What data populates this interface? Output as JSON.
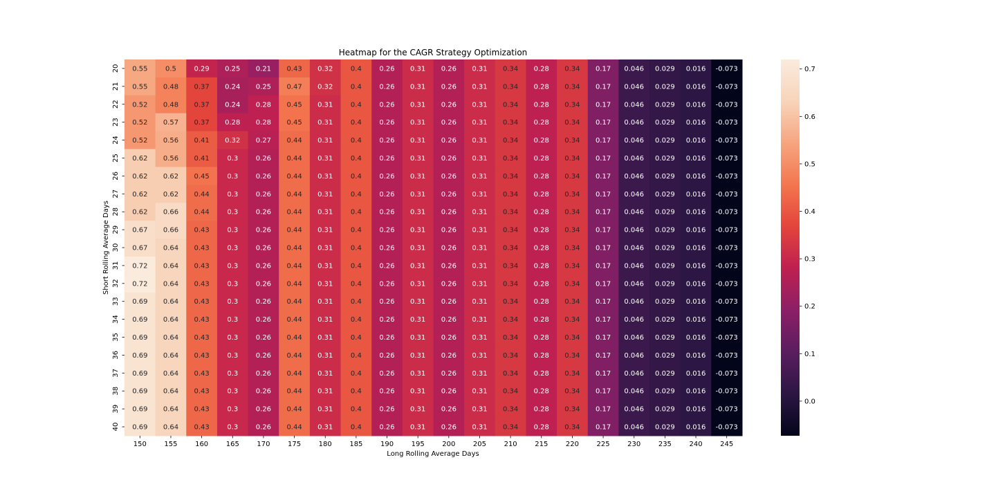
{
  "chart_data": {
    "type": "heatmap",
    "title": "Heatmap for the CAGR Strategy Optimization",
    "xlabel": "Long Rolling Average Days",
    "ylabel": "Short Rolling Average Days",
    "x_categories": [
      "150",
      "155",
      "160",
      "165",
      "170",
      "175",
      "180",
      "185",
      "190",
      "195",
      "200",
      "205",
      "210",
      "215",
      "220",
      "225",
      "230",
      "235",
      "240",
      "245"
    ],
    "y_categories": [
      "20",
      "21",
      "22",
      "23",
      "24",
      "25",
      "26",
      "27",
      "28",
      "29",
      "30",
      "31",
      "32",
      "33",
      "34",
      "35",
      "36",
      "37",
      "38",
      "39",
      "40"
    ],
    "values": [
      [
        0.55,
        0.5,
        0.29,
        0.25,
        0.21,
        0.43,
        0.32,
        0.4,
        0.26,
        0.31,
        0.26,
        0.31,
        0.34,
        0.28,
        0.34,
        0.17,
        0.046,
        0.029,
        0.016,
        -0.073
      ],
      [
        0.55,
        0.48,
        0.37,
        0.24,
        0.25,
        0.47,
        0.32,
        0.4,
        0.26,
        0.31,
        0.26,
        0.31,
        0.34,
        0.28,
        0.34,
        0.17,
        0.046,
        0.029,
        0.016,
        -0.073
      ],
      [
        0.52,
        0.48,
        0.37,
        0.24,
        0.28,
        0.45,
        0.31,
        0.4,
        0.26,
        0.31,
        0.26,
        0.31,
        0.34,
        0.28,
        0.34,
        0.17,
        0.046,
        0.029,
        0.016,
        -0.073
      ],
      [
        0.52,
        0.57,
        0.37,
        0.28,
        0.28,
        0.45,
        0.31,
        0.4,
        0.26,
        0.31,
        0.26,
        0.31,
        0.34,
        0.28,
        0.34,
        0.17,
        0.046,
        0.029,
        0.016,
        -0.073
      ],
      [
        0.52,
        0.56,
        0.41,
        0.32,
        0.27,
        0.44,
        0.31,
        0.4,
        0.26,
        0.31,
        0.26,
        0.31,
        0.34,
        0.28,
        0.34,
        0.17,
        0.046,
        0.029,
        0.016,
        -0.073
      ],
      [
        0.62,
        0.56,
        0.41,
        0.3,
        0.26,
        0.44,
        0.31,
        0.4,
        0.26,
        0.31,
        0.26,
        0.31,
        0.34,
        0.28,
        0.34,
        0.17,
        0.046,
        0.029,
        0.016,
        -0.073
      ],
      [
        0.62,
        0.62,
        0.45,
        0.3,
        0.26,
        0.44,
        0.31,
        0.4,
        0.26,
        0.31,
        0.26,
        0.31,
        0.34,
        0.28,
        0.34,
        0.17,
        0.046,
        0.029,
        0.016,
        -0.073
      ],
      [
        0.62,
        0.62,
        0.44,
        0.3,
        0.26,
        0.44,
        0.31,
        0.4,
        0.26,
        0.31,
        0.26,
        0.31,
        0.34,
        0.28,
        0.34,
        0.17,
        0.046,
        0.029,
        0.016,
        -0.073
      ],
      [
        0.62,
        0.66,
        0.44,
        0.3,
        0.26,
        0.44,
        0.31,
        0.4,
        0.26,
        0.31,
        0.26,
        0.31,
        0.34,
        0.28,
        0.34,
        0.17,
        0.046,
        0.029,
        0.016,
        -0.073
      ],
      [
        0.67,
        0.66,
        0.43,
        0.3,
        0.26,
        0.44,
        0.31,
        0.4,
        0.26,
        0.31,
        0.26,
        0.31,
        0.34,
        0.28,
        0.34,
        0.17,
        0.046,
        0.029,
        0.016,
        -0.073
      ],
      [
        0.67,
        0.64,
        0.43,
        0.3,
        0.26,
        0.44,
        0.31,
        0.4,
        0.26,
        0.31,
        0.26,
        0.31,
        0.34,
        0.28,
        0.34,
        0.17,
        0.046,
        0.029,
        0.016,
        -0.073
      ],
      [
        0.72,
        0.64,
        0.43,
        0.3,
        0.26,
        0.44,
        0.31,
        0.4,
        0.26,
        0.31,
        0.26,
        0.31,
        0.34,
        0.28,
        0.34,
        0.17,
        0.046,
        0.029,
        0.016,
        -0.073
      ],
      [
        0.72,
        0.64,
        0.43,
        0.3,
        0.26,
        0.44,
        0.31,
        0.4,
        0.26,
        0.31,
        0.26,
        0.31,
        0.34,
        0.28,
        0.34,
        0.17,
        0.046,
        0.029,
        0.016,
        -0.073
      ],
      [
        0.69,
        0.64,
        0.43,
        0.3,
        0.26,
        0.44,
        0.31,
        0.4,
        0.26,
        0.31,
        0.26,
        0.31,
        0.34,
        0.28,
        0.34,
        0.17,
        0.046,
        0.029,
        0.016,
        -0.073
      ],
      [
        0.69,
        0.64,
        0.43,
        0.3,
        0.26,
        0.44,
        0.31,
        0.4,
        0.26,
        0.31,
        0.26,
        0.31,
        0.34,
        0.28,
        0.34,
        0.17,
        0.046,
        0.029,
        0.016,
        -0.073
      ],
      [
        0.69,
        0.64,
        0.43,
        0.3,
        0.26,
        0.44,
        0.31,
        0.4,
        0.26,
        0.31,
        0.26,
        0.31,
        0.34,
        0.28,
        0.34,
        0.17,
        0.046,
        0.029,
        0.016,
        -0.073
      ],
      [
        0.69,
        0.64,
        0.43,
        0.3,
        0.26,
        0.44,
        0.31,
        0.4,
        0.26,
        0.31,
        0.26,
        0.31,
        0.34,
        0.28,
        0.34,
        0.17,
        0.046,
        0.029,
        0.016,
        -0.073
      ],
      [
        0.69,
        0.64,
        0.43,
        0.3,
        0.26,
        0.44,
        0.31,
        0.4,
        0.26,
        0.31,
        0.26,
        0.31,
        0.34,
        0.28,
        0.34,
        0.17,
        0.046,
        0.029,
        0.016,
        -0.073
      ],
      [
        0.69,
        0.64,
        0.43,
        0.3,
        0.26,
        0.44,
        0.31,
        0.4,
        0.26,
        0.31,
        0.26,
        0.31,
        0.34,
        0.28,
        0.34,
        0.17,
        0.046,
        0.029,
        0.016,
        -0.073
      ],
      [
        0.69,
        0.64,
        0.43,
        0.3,
        0.26,
        0.44,
        0.31,
        0.4,
        0.26,
        0.31,
        0.26,
        0.31,
        0.34,
        0.28,
        0.34,
        0.17,
        0.046,
        0.029,
        0.016,
        -0.073
      ],
      [
        0.69,
        0.64,
        0.43,
        0.3,
        0.26,
        0.44,
        0.31,
        0.4,
        0.26,
        0.31,
        0.26,
        0.31,
        0.34,
        0.28,
        0.34,
        0.17,
        0.046,
        0.029,
        0.016,
        -0.073
      ]
    ],
    "cell_labels": [
      [
        "0.55",
        "0.5",
        "0.29",
        "0.25",
        "0.21",
        "0.43",
        "0.32",
        "0.4",
        "0.26",
        "0.31",
        "0.26",
        "0.31",
        "0.34",
        "0.28",
        "0.34",
        "0.17",
        "0.046",
        "0.029",
        "0.016",
        "-0.073"
      ],
      [
        "0.55",
        "0.48",
        "0.37",
        "0.24",
        "0.25",
        "0.47",
        "0.32",
        "0.4",
        "0.26",
        "0.31",
        "0.26",
        "0.31",
        "0.34",
        "0.28",
        "0.34",
        "0.17",
        "0.046",
        "0.029",
        "0.016",
        "-0.073"
      ],
      [
        "0.52",
        "0.48",
        "0.37",
        "0.24",
        "0.28",
        "0.45",
        "0.31",
        "0.4",
        "0.26",
        "0.31",
        "0.26",
        "0.31",
        "0.34",
        "0.28",
        "0.34",
        "0.17",
        "0.046",
        "0.029",
        "0.016",
        "-0.073"
      ],
      [
        "0.52",
        "0.57",
        "0.37",
        "0.28",
        "0.28",
        "0.45",
        "0.31",
        "0.4",
        "0.26",
        "0.31",
        "0.26",
        "0.31",
        "0.34",
        "0.28",
        "0.34",
        "0.17",
        "0.046",
        "0.029",
        "0.016",
        "-0.073"
      ],
      [
        "0.52",
        "0.56",
        "0.41",
        "0.32",
        "0.27",
        "0.44",
        "0.31",
        "0.4",
        "0.26",
        "0.31",
        "0.26",
        "0.31",
        "0.34",
        "0.28",
        "0.34",
        "0.17",
        "0.046",
        "0.029",
        "0.016",
        "-0.073"
      ],
      [
        "0.62",
        "0.56",
        "0.41",
        "0.3",
        "0.26",
        "0.44",
        "0.31",
        "0.4",
        "0.26",
        "0.31",
        "0.26",
        "0.31",
        "0.34",
        "0.28",
        "0.34",
        "0.17",
        "0.046",
        "0.029",
        "0.016",
        "-0.073"
      ],
      [
        "0.62",
        "0.62",
        "0.45",
        "0.3",
        "0.26",
        "0.44",
        "0.31",
        "0.4",
        "0.26",
        "0.31",
        "0.26",
        "0.31",
        "0.34",
        "0.28",
        "0.34",
        "0.17",
        "0.046",
        "0.029",
        "0.016",
        "-0.073"
      ],
      [
        "0.62",
        "0.62",
        "0.44",
        "0.3",
        "0.26",
        "0.44",
        "0.31",
        "0.4",
        "0.26",
        "0.31",
        "0.26",
        "0.31",
        "0.34",
        "0.28",
        "0.34",
        "0.17",
        "0.046",
        "0.029",
        "0.016",
        "-0.073"
      ],
      [
        "0.62",
        "0.66",
        "0.44",
        "0.3",
        "0.26",
        "0.44",
        "0.31",
        "0.4",
        "0.26",
        "0.31",
        "0.26",
        "0.31",
        "0.34",
        "0.28",
        "0.34",
        "0.17",
        "0.046",
        "0.029",
        "0.016",
        "-0.073"
      ],
      [
        "0.67",
        "0.66",
        "0.43",
        "0.3",
        "0.26",
        "0.44",
        "0.31",
        "0.4",
        "0.26",
        "0.31",
        "0.26",
        "0.31",
        "0.34",
        "0.28",
        "0.34",
        "0.17",
        "0.046",
        "0.029",
        "0.016",
        "-0.073"
      ],
      [
        "0.67",
        "0.64",
        "0.43",
        "0.3",
        "0.26",
        "0.44",
        "0.31",
        "0.4",
        "0.26",
        "0.31",
        "0.26",
        "0.31",
        "0.34",
        "0.28",
        "0.34",
        "0.17",
        "0.046",
        "0.029",
        "0.016",
        "-0.073"
      ],
      [
        "0.72",
        "0.64",
        "0.43",
        "0.3",
        "0.26",
        "0.44",
        "0.31",
        "0.4",
        "0.26",
        "0.31",
        "0.26",
        "0.31",
        "0.34",
        "0.28",
        "0.34",
        "0.17",
        "0.046",
        "0.029",
        "0.016",
        "-0.073"
      ],
      [
        "0.72",
        "0.64",
        "0.43",
        "0.3",
        "0.26",
        "0.44",
        "0.31",
        "0.4",
        "0.26",
        "0.31",
        "0.26",
        "0.31",
        "0.34",
        "0.28",
        "0.34",
        "0.17",
        "0.046",
        "0.029",
        "0.016",
        "-0.073"
      ],
      [
        "0.69",
        "0.64",
        "0.43",
        "0.3",
        "0.26",
        "0.44",
        "0.31",
        "0.4",
        "0.26",
        "0.31",
        "0.26",
        "0.31",
        "0.34",
        "0.28",
        "0.34",
        "0.17",
        "0.046",
        "0.029",
        "0.016",
        "-0.073"
      ],
      [
        "0.69",
        "0.64",
        "0.43",
        "0.3",
        "0.26",
        "0.44",
        "0.31",
        "0.4",
        "0.26",
        "0.31",
        "0.26",
        "0.31",
        "0.34",
        "0.28",
        "0.34",
        "0.17",
        "0.046",
        "0.029",
        "0.016",
        "-0.073"
      ],
      [
        "0.69",
        "0.64",
        "0.43",
        "0.3",
        "0.26",
        "0.44",
        "0.31",
        "0.4",
        "0.26",
        "0.31",
        "0.26",
        "0.31",
        "0.34",
        "0.28",
        "0.34",
        "0.17",
        "0.046",
        "0.029",
        "0.016",
        "-0.073"
      ],
      [
        "0.69",
        "0.64",
        "0.43",
        "0.3",
        "0.26",
        "0.44",
        "0.31",
        "0.4",
        "0.26",
        "0.31",
        "0.26",
        "0.31",
        "0.34",
        "0.28",
        "0.34",
        "0.17",
        "0.046",
        "0.029",
        "0.016",
        "-0.073"
      ],
      [
        "0.69",
        "0.64",
        "0.43",
        "0.3",
        "0.26",
        "0.44",
        "0.31",
        "0.4",
        "0.26",
        "0.31",
        "0.26",
        "0.31",
        "0.34",
        "0.28",
        "0.34",
        "0.17",
        "0.046",
        "0.029",
        "0.016",
        "-0.073"
      ],
      [
        "0.69",
        "0.64",
        "0.43",
        "0.3",
        "0.26",
        "0.44",
        "0.31",
        "0.4",
        "0.26",
        "0.31",
        "0.26",
        "0.31",
        "0.34",
        "0.28",
        "0.34",
        "0.17",
        "0.046",
        "0.029",
        "0.016",
        "-0.073"
      ],
      [
        "0.69",
        "0.64",
        "0.43",
        "0.3",
        "0.26",
        "0.44",
        "0.31",
        "0.4",
        "0.26",
        "0.31",
        "0.26",
        "0.31",
        "0.34",
        "0.28",
        "0.34",
        "0.17",
        "0.046",
        "0.029",
        "0.016",
        "-0.073"
      ],
      [
        "0.69",
        "0.64",
        "0.43",
        "0.3",
        "0.26",
        "0.44",
        "0.31",
        "0.4",
        "0.26",
        "0.31",
        "0.26",
        "0.31",
        "0.34",
        "0.28",
        "0.34",
        "0.17",
        "0.046",
        "0.029",
        "0.016",
        "-0.073"
      ]
    ],
    "colorbar": {
      "vmin": -0.073,
      "vmax": 0.72,
      "ticks": [
        0.0,
        0.1,
        0.2,
        0.3,
        0.4,
        0.5,
        0.6,
        0.7
      ],
      "tick_labels": [
        "0.0",
        "0.1",
        "0.2",
        "0.3",
        "0.4",
        "0.5",
        "0.6",
        "0.7"
      ],
      "colormap": "rocket",
      "colormap_stops": [
        "#03051a",
        "#2c1643",
        "#5a1e5f",
        "#8c1f66",
        "#be2051",
        "#e3443b",
        "#f3764f",
        "#f6a57f",
        "#f8d4ba",
        "#faebdd"
      ]
    },
    "grid": false,
    "legend": "colorbar-right"
  }
}
